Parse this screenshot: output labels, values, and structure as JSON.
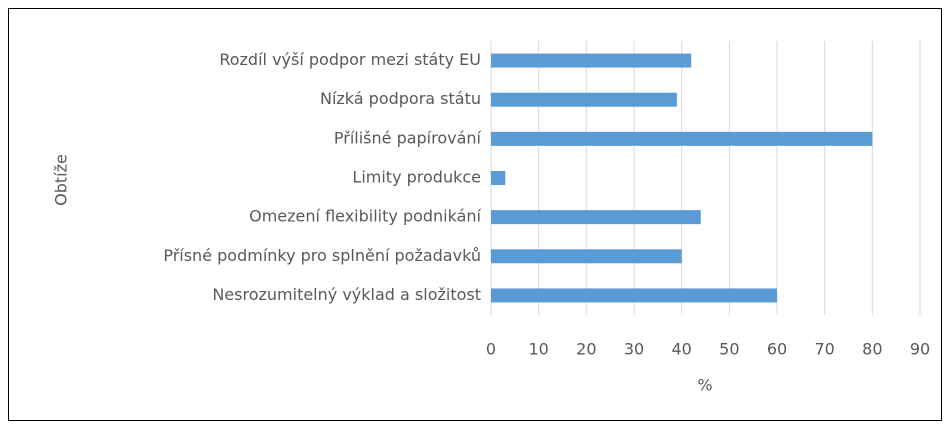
{
  "chart_data": {
    "type": "hbar",
    "x_label": "%",
    "y_label": "Obtíže",
    "categories": [
      "Rozdíl výší podpor mezi státy EU",
      "Nízká podpora státu",
      "Přílišné papírování",
      "Limity produkce",
      "Omezení flexibility podnikání",
      "Přísné podmínky pro splnění požadavků",
      "Nesrozumitelný výklad a složitost"
    ],
    "values": [
      42,
      39,
      80,
      3,
      44,
      40,
      60
    ],
    "color": "#5b9bd5",
    "xlim": [
      0,
      90
    ],
    "xticks": [
      0,
      10,
      20,
      30,
      40,
      50,
      60,
      70,
      80,
      90
    ],
    "grid": true
  }
}
